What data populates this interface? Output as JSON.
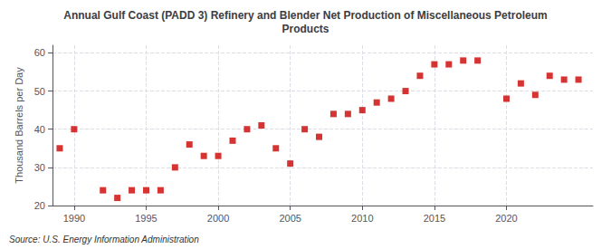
{
  "chart_data": {
    "type": "scatter",
    "title": "Annual Gulf Coast (PADD 3) Refinery and Blender Net Production of Miscellaneous Petroleum\nProducts",
    "ylabel": "Thousand Barrels per Day",
    "annotation": "Source: U.S. Energy Information Administration",
    "x": [
      1989,
      1990,
      1992,
      1993,
      1994,
      1995,
      1996,
      1997,
      1998,
      1999,
      2000,
      2001,
      2002,
      2003,
      2004,
      2005,
      2006,
      2007,
      2008,
      2009,
      2010,
      2011,
      2012,
      2013,
      2014,
      2015,
      2016,
      2017,
      2018,
      2020,
      2021,
      2022,
      2023,
      2024,
      2025
    ],
    "values": [
      35,
      40,
      24,
      22,
      24,
      24,
      24,
      30,
      36,
      33,
      33,
      37,
      40,
      41,
      35,
      31,
      40,
      38,
      44,
      44,
      45,
      47,
      48,
      50,
      54,
      57,
      57,
      58,
      58,
      48,
      52,
      49,
      54,
      53,
      53
    ],
    "color": "#cc0000",
    "marker": "square",
    "xlim": [
      1988.5,
      2026
    ],
    "ylim": [
      20,
      62
    ],
    "xticks": [
      1990,
      1995,
      2000,
      2005,
      2010,
      2015,
      2020
    ],
    "yticks": [
      20,
      30,
      40,
      50,
      60
    ],
    "grid": true
  }
}
